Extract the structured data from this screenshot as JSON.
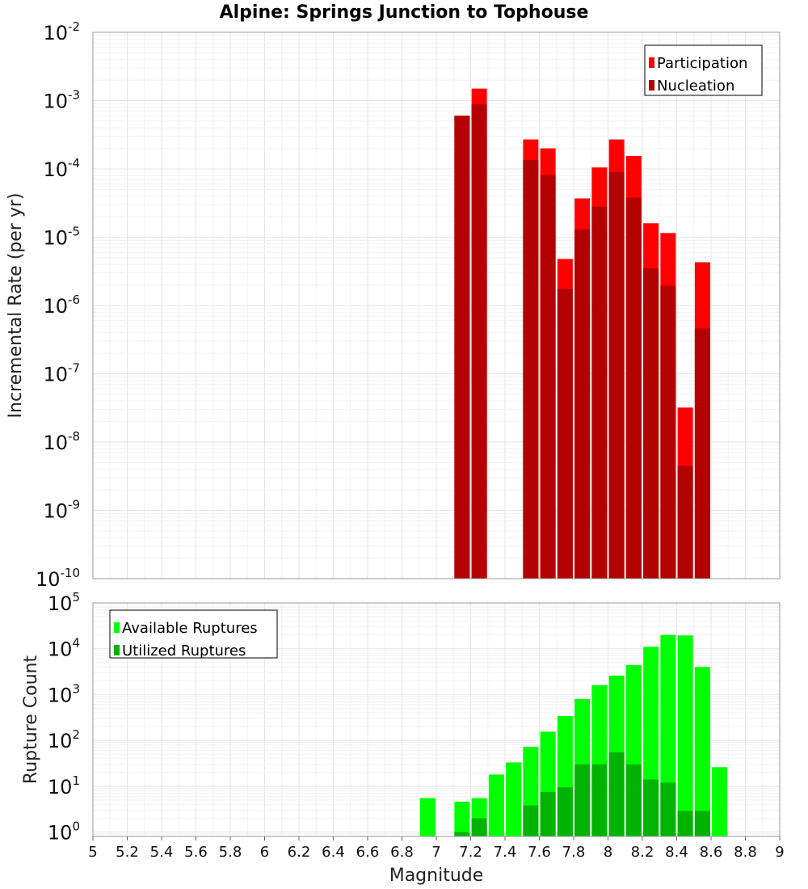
{
  "title": "Alpine: Springs Junction to Tophouse",
  "colors": {
    "participation": "#ff0000",
    "nucleation": "#b30000",
    "available": "#00ff00",
    "utilized": "#00b300",
    "grid_major": "#e6e6e6",
    "grid_minor": "#f2f2f2"
  },
  "chart_data": [
    {
      "type": "bar",
      "panel": "rates",
      "ylabel": "Incremental Rate (per yr)",
      "yscale": "log",
      "ylim": [
        1e-10,
        0.01
      ],
      "xlim": [
        5,
        9
      ],
      "grid": true,
      "legend_placement": "top-right",
      "y_ticks": [
        {
          "base": "10",
          "exp": "-10",
          "value": 1e-10
        },
        {
          "base": "10",
          "exp": "-9",
          "value": 1e-09
        },
        {
          "base": "10",
          "exp": "-8",
          "value": 1e-08
        },
        {
          "base": "10",
          "exp": "-7",
          "value": 1e-07
        },
        {
          "base": "10",
          "exp": "-6",
          "value": 1e-06
        },
        {
          "base": "10",
          "exp": "-5",
          "value": 1e-05
        },
        {
          "base": "10",
          "exp": "-4",
          "value": 0.0001
        },
        {
          "base": "10",
          "exp": "-3",
          "value": 0.001
        },
        {
          "base": "10",
          "exp": "-2",
          "value": 0.01
        }
      ],
      "series": [
        {
          "name": "Participation",
          "color": "#ff0000",
          "x": [
            7.15,
            7.25,
            7.55,
            7.65,
            7.75,
            7.85,
            7.95,
            8.05,
            8.15,
            8.25,
            8.35,
            8.45,
            8.55
          ],
          "values": [
            0.0006,
            0.0015,
            0.00027,
            0.0002,
            4.8e-06,
            3.7e-05,
            0.000105,
            0.00027,
            0.000155,
            1.6e-05,
            1.15e-05,
            3.2e-08,
            4.3e-06
          ]
        },
        {
          "name": "Nucleation",
          "color": "#b30000",
          "x": [
            7.15,
            7.25,
            7.55,
            7.65,
            7.75,
            7.85,
            7.95,
            8.05,
            8.15,
            8.25,
            8.35,
            8.45,
            8.55
          ],
          "values": [
            0.0006,
            0.00088,
            0.000135,
            8.2e-05,
            1.75e-06,
            1.3e-05,
            2.8e-05,
            9e-05,
            3.8e-05,
            3.5e-06,
            1.95e-06,
            4.5e-09,
            4.6e-07
          ]
        }
      ]
    },
    {
      "type": "bar",
      "panel": "counts",
      "ylabel": "Rupture Count",
      "xlabel": "Magnitude",
      "yscale": "log",
      "ylim": [
        0.8,
        100000
      ],
      "xlim": [
        5,
        9
      ],
      "grid": true,
      "legend_placement": "top-left",
      "x_ticks": [
        "5",
        "5.2",
        "5.4",
        "5.6",
        "5.8",
        "6",
        "6.2",
        "6.4",
        "6.6",
        "6.8",
        "7",
        "7.2",
        "7.4",
        "7.6",
        "7.8",
        "8",
        "8.2",
        "8.4",
        "8.6",
        "8.8",
        "9"
      ],
      "y_ticks": [
        {
          "base": "10",
          "exp": "0",
          "value": 1
        },
        {
          "base": "10",
          "exp": "1",
          "value": 10
        },
        {
          "base": "10",
          "exp": "2",
          "value": 100
        },
        {
          "base": "10",
          "exp": "3",
          "value": 1000
        },
        {
          "base": "10",
          "exp": "4",
          "value": 10000
        },
        {
          "base": "10",
          "exp": "5",
          "value": 100000
        }
      ],
      "series": [
        {
          "name": "Available Ruptures",
          "color": "#00ff00",
          "x": [
            6.95,
            7.15,
            7.25,
            7.35,
            7.45,
            7.55,
            7.65,
            7.75,
            7.85,
            7.95,
            8.05,
            8.15,
            8.25,
            8.35,
            8.45,
            8.55,
            8.65
          ],
          "values": [
            5.5,
            4.6,
            5.5,
            18,
            33,
            72,
            155,
            340,
            800,
            1600,
            2600,
            4400,
            11000,
            20000,
            19500,
            4000,
            26
          ]
        },
        {
          "name": "Utilized Ruptures",
          "color": "#00b300",
          "x": [
            7.15,
            7.25,
            7.55,
            7.65,
            7.75,
            7.85,
            7.95,
            8.05,
            8.15,
            8.25,
            8.35,
            8.45,
            8.55
          ],
          "values": [
            1.0,
            2.0,
            3.8,
            7.5,
            9.5,
            30,
            30,
            55,
            30,
            14,
            12,
            2.9,
            2.9
          ]
        }
      ]
    }
  ]
}
